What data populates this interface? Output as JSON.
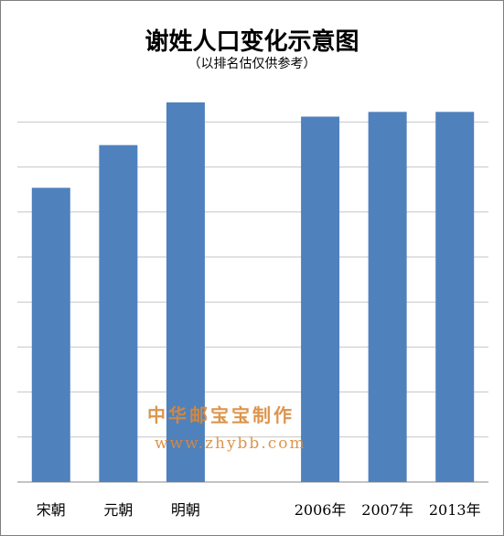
{
  "chart_data": {
    "type": "bar",
    "title": "谢姓人口变化示意图",
    "subtitle": "（以排名估仅供参考）",
    "categories": [
      "宋朝",
      "元朝",
      "明朝",
      "",
      "2006年",
      "2007年",
      "2013年"
    ],
    "values": [
      6.2,
      7.1,
      8.0,
      null,
      7.7,
      7.8,
      7.8
    ],
    "ylim": [
      0,
      8.5
    ],
    "grid": true,
    "colors": {
      "bar": "#4f81bd",
      "grid": "#c6c6c6",
      "axis": "#888888"
    }
  },
  "watermark": {
    "line1": "中华邮宝宝制作",
    "line2": "www.zhybb.com",
    "color": "#d98a3a"
  }
}
